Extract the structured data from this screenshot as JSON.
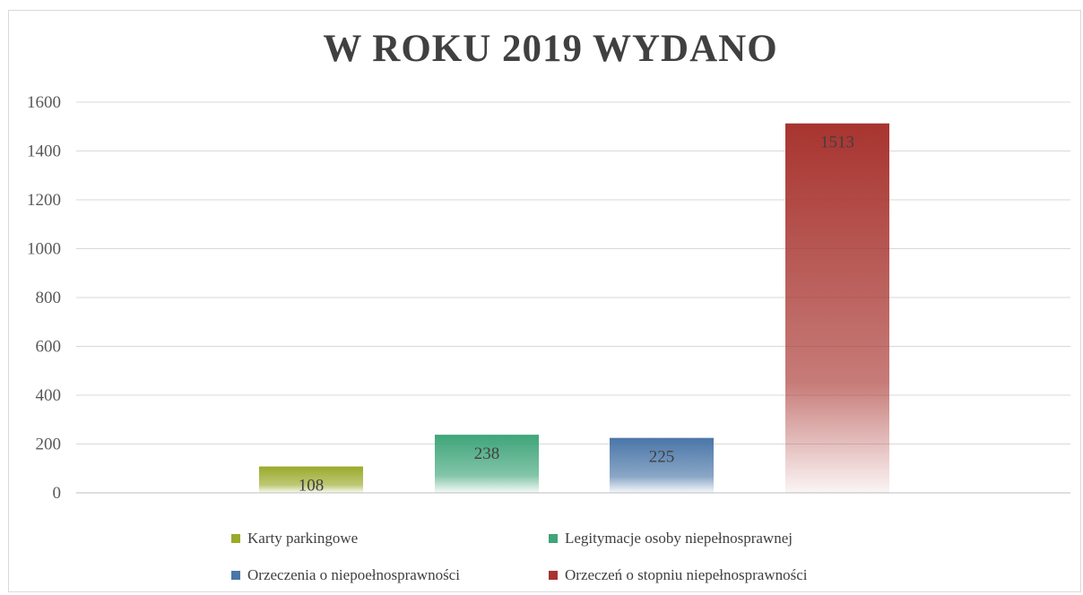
{
  "chart_data": {
    "type": "bar",
    "title": "W ROKU 2019 WYDANO",
    "xlabel": "",
    "ylabel": "",
    "ylim": [
      0,
      1600
    ],
    "yticks": [
      0,
      200,
      400,
      600,
      800,
      1000,
      1200,
      1400,
      1600
    ],
    "ytick_labels": [
      "0",
      "200",
      "400",
      "600",
      "800",
      "1000",
      "1200",
      "1400",
      "1600"
    ],
    "grid": true,
    "legend_position": "bottom",
    "series": [
      {
        "name": "Karty parkingowe",
        "value": 108,
        "label": "108",
        "color": "#9aaa2a"
      },
      {
        "name": "Legitymacje osoby niepełnosprawnej",
        "value": 238,
        "label": "238",
        "color": "#3fa57a"
      },
      {
        "name": "Orzeczenia o niepoełnosprawności",
        "value": 225,
        "label": "225",
        "color": "#4a76a8"
      },
      {
        "name": "Orzeczeń o stopniu niepełnosprawności",
        "value": 1513,
        "label": "1513",
        "color": "#a8342f"
      }
    ]
  }
}
